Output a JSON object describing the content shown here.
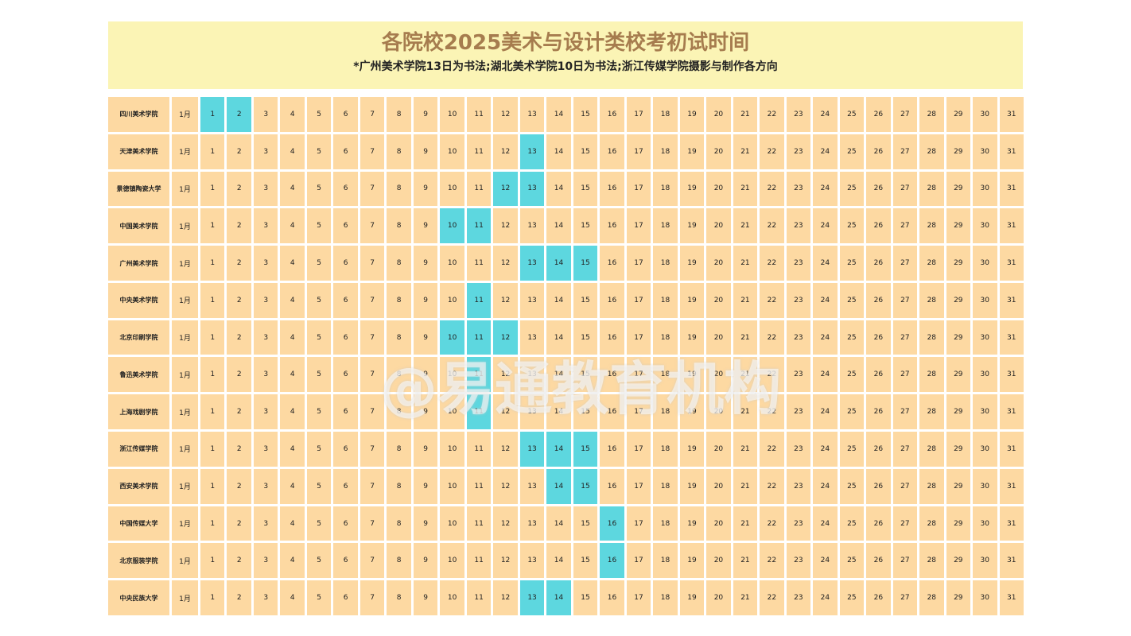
{
  "header": {
    "title": "各院校2025美术与设计类校考初试时间",
    "subtitle": "*广州美术学院13日为书法;湖北美术学院10日为书法;浙江传媒学院摄影与制作各方向"
  },
  "days": [
    1,
    2,
    3,
    4,
    5,
    6,
    7,
    8,
    9,
    10,
    11,
    12,
    13,
    14,
    15,
    16,
    17,
    18,
    19,
    20,
    21,
    22,
    23,
    24,
    25,
    26,
    27,
    28,
    29,
    30,
    31
  ],
  "rows": [
    {
      "name": "四川美术学院",
      "month": "1月",
      "highlight": [
        1,
        2
      ]
    },
    {
      "name": "天津美术学院",
      "month": "1月",
      "highlight": [
        13
      ]
    },
    {
      "name": "景德镇陶瓷大学",
      "month": "1月",
      "highlight": [
        12,
        13
      ]
    },
    {
      "name": "中国美术学院",
      "month": "1月",
      "highlight": [
        10,
        11
      ]
    },
    {
      "name": "广州美术学院",
      "month": "1月",
      "highlight": [
        13,
        14,
        15
      ]
    },
    {
      "name": "中央美术学院",
      "month": "1月",
      "highlight": [
        11
      ]
    },
    {
      "name": "北京印刷学院",
      "month": "1月",
      "highlight": [
        10,
        11,
        12
      ]
    },
    {
      "name": "鲁迅美术学院",
      "month": "1月",
      "highlight": [
        11
      ]
    },
    {
      "name": "上海戏剧学院",
      "month": "1月",
      "highlight": [
        11
      ]
    },
    {
      "name": "浙江传媒学院",
      "month": "1月",
      "highlight": [
        13,
        14,
        15
      ]
    },
    {
      "name": "西安美术学院",
      "month": "1月",
      "highlight": [
        14,
        15
      ]
    },
    {
      "name": "中国传媒大学",
      "month": "1月",
      "highlight": [
        16
      ]
    },
    {
      "name": "北京服装学院",
      "month": "1月",
      "highlight": [
        16
      ]
    },
    {
      "name": "中央民族大学",
      "month": "1月",
      "highlight": [
        13,
        14
      ]
    }
  ],
  "watermark": "@易通教育机构"
}
